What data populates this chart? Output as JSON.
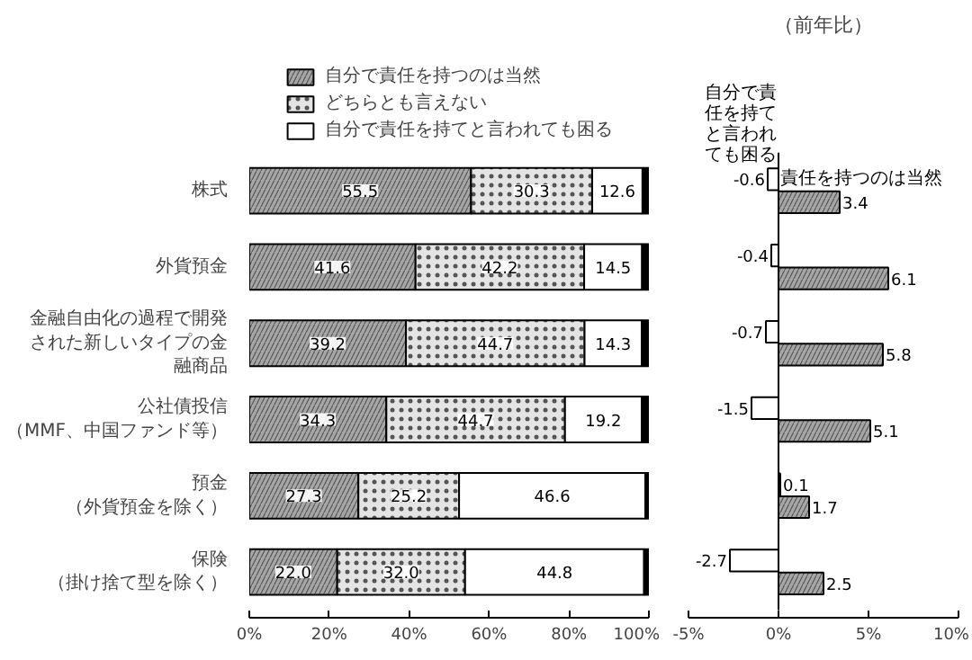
{
  "chart_data": [
    {
      "type": "bar",
      "orientation": "horizontal",
      "stacked": true,
      "legend": "top",
      "categories": [
        "株式",
        "外貨預金",
        "金融自由化の過程で開発された新しいタイプの金融商品",
        "公社債投信（MMF、中国ファンド等）",
        "預金（外貨預金を除く）",
        "保険（掛け捨て型を除く）"
      ],
      "series": [
        {
          "name": "自分で責任を持つのは当然",
          "color": "#a6a6a6",
          "values": [
            55.5,
            41.6,
            39.2,
            34.3,
            27.3,
            22.0
          ],
          "value_labels": [
            "55.5",
            "41.6",
            "39.2",
            "34.3",
            "27.3",
            "22.0"
          ]
        },
        {
          "name": "どちらとも言えない",
          "color": "#e4e4e4",
          "values": [
            30.3,
            42.2,
            44.7,
            44.7,
            25.2,
            32.0
          ],
          "value_labels": [
            "30.3",
            "42.2",
            "44.7",
            "44.7",
            "25.2",
            "32.0"
          ]
        },
        {
          "name": "自分で責任を持てと言われても困る",
          "color": "#ffffff",
          "values": [
            12.6,
            14.5,
            14.3,
            19.2,
            46.6,
            44.8
          ],
          "value_labels": [
            "12.6",
            "14.5",
            "14.3",
            "19.2",
            "46.6",
            "44.8"
          ]
        },
        {
          "color": "#000000",
          "values": [
            1.6,
            1.7,
            1.8,
            1.8,
            0.9,
            1.2
          ]
        }
      ],
      "xlim": [
        0,
        100
      ],
      "xticks": [
        {
          "value": 0,
          "label": "0%"
        },
        {
          "value": 20,
          "label": "20%"
        },
        {
          "value": 40,
          "label": "40%"
        },
        {
          "value": 60,
          "label": "60%"
        },
        {
          "value": 80,
          "label": "80%"
        },
        {
          "value": 100,
          "label": "100%"
        }
      ]
    },
    {
      "type": "bar",
      "orientation": "horizontal",
      "title": "（前年比）",
      "tick_labels": "x",
      "data_labels": true,
      "categories": [
        "株式",
        "外貨預金",
        "金融自由化の過程で開発された新しいタイプの金融商品",
        "公社債投信（MMF、中国ファンド等）",
        "預金（外貨預金を除く）",
        "保険（掛け捨て型を除く）"
      ],
      "series": [
        {
          "name": "自分で責任を持てと言われても困る",
          "color": "#ffffff",
          "values": [
            -0.6,
            -0.4,
            -0.7,
            -1.5,
            0.1,
            -2.7
          ]
        },
        {
          "name": "責任を持つのは当然",
          "color": "#a6a6a6",
          "values": [
            3.4,
            6.1,
            5.8,
            5.1,
            1.7,
            2.5
          ]
        }
      ],
      "xlim": [
        -5,
        10
      ],
      "xticks": [
        {
          "value": -5,
          "label": "-5%"
        },
        {
          "value": 0,
          "label": "0%"
        },
        {
          "value": 5,
          "label": "5%"
        },
        {
          "value": 10,
          "label": "10%"
        }
      ]
    }
  ]
}
